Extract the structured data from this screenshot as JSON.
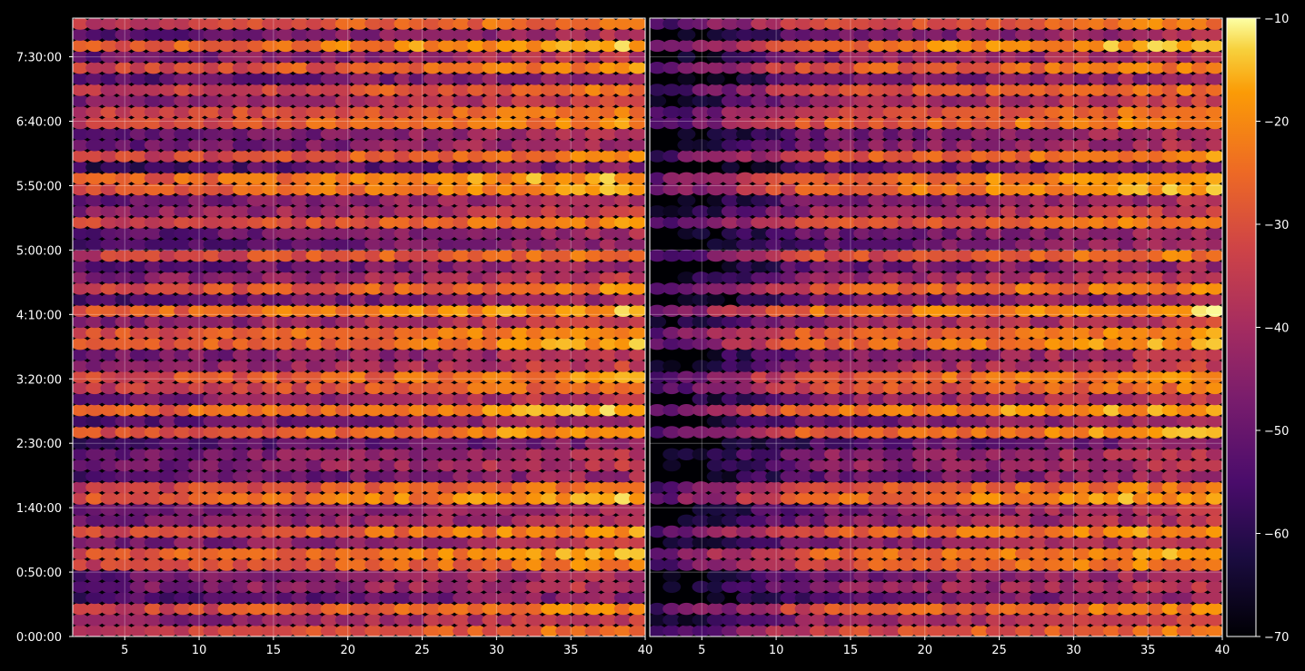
{
  "chart_data": {
    "type": "heatmap",
    "title": "",
    "xlabel": "",
    "ylabel": "",
    "colormap": "inferno",
    "background": "#000000",
    "grid": true,
    "panels": [
      {
        "name": "",
        "xlim": [
          1.5,
          40
        ],
        "xticks": [
          5,
          10,
          15,
          20,
          25,
          30,
          35,
          40
        ],
        "xtick_labels": [
          "5",
          "10",
          "15",
          "20",
          "25",
          "30",
          "35",
          "40"
        ]
      },
      {
        "name": "",
        "xlim": [
          1.5,
          40
        ],
        "xticks": [
          5,
          10,
          15,
          20,
          25,
          30,
          35,
          40
        ],
        "xtick_labels": [
          "5",
          "10",
          "15",
          "20",
          "25",
          "30",
          "35",
          "40"
        ]
      }
    ],
    "y": {
      "range_seconds": [
        0,
        28800
      ],
      "ticks_seconds": [
        0,
        3000,
        6000,
        9000,
        12000,
        15000,
        18000,
        21000,
        24000,
        27000
      ],
      "tick_labels": [
        "0:00:00",
        "0:50:00",
        "1:40:00",
        "2:30:00",
        "3:20:00",
        "4:10:00",
        "5:00:00",
        "5:50:00",
        "6:40:00",
        "7:30:00"
      ]
    },
    "colorbar": {
      "range": [
        -70,
        -10
      ],
      "ticks": [
        -70,
        -60,
        -50,
        -40,
        -30,
        -20,
        -10
      ],
      "tick_labels": [
        "−70",
        "−60",
        "−50",
        "−40",
        "−30",
        "−20",
        "−10"
      ]
    },
    "rows": {
      "count": 56,
      "strong_rows": [
        0,
        2,
        6,
        7,
        9,
        12,
        13,
        18,
        20,
        22,
        23,
        26,
        27,
        29,
        31,
        34,
        37,
        40,
        41,
        43,
        46,
        47,
        49,
        51,
        53,
        55
      ],
      "values_note": ""
    }
  }
}
